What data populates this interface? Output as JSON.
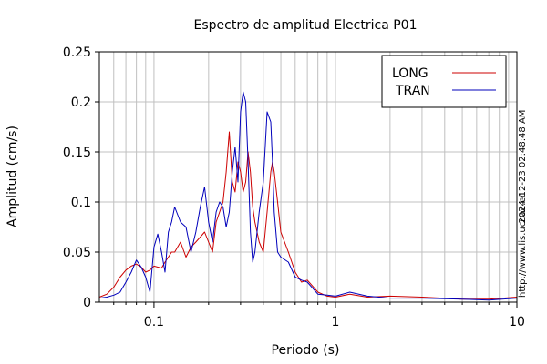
{
  "chart_data": {
    "type": "line",
    "title": "Espectro de amplitud Electrica P01",
    "xlabel": "Periodo (s)",
    "ylabel": "Amplitud (cm/s)",
    "x_scale": "log",
    "xlim": [
      0.05,
      10
    ],
    "ylim": [
      0,
      0.25
    ],
    "x_ticks": [
      0.1,
      1,
      10
    ],
    "x_tick_labels": [
      "0.1",
      "1",
      "10"
    ],
    "y_ticks": [
      0,
      0.05,
      0.1,
      0.15,
      0.2,
      0.25
    ],
    "y_tick_labels": [
      "0",
      "0.05",
      "0.1",
      "0.15",
      "0.2",
      "0.25"
    ],
    "grid": true,
    "legend_position": "top-right",
    "series": [
      {
        "name": "LONG",
        "color": "#cc0000",
        "x": [
          0.05,
          0.055,
          0.06,
          0.065,
          0.07,
          0.075,
          0.08,
          0.085,
          0.09,
          0.095,
          0.1,
          0.105,
          0.11,
          0.115,
          0.12,
          0.125,
          0.13,
          0.14,
          0.15,
          0.16,
          0.17,
          0.18,
          0.19,
          0.2,
          0.21,
          0.22,
          0.23,
          0.24,
          0.25,
          0.26,
          0.27,
          0.28,
          0.29,
          0.3,
          0.31,
          0.32,
          0.33,
          0.34,
          0.35,
          0.36,
          0.38,
          0.4,
          0.42,
          0.44,
          0.45,
          0.46,
          0.48,
          0.5,
          0.55,
          0.6,
          0.65,
          0.7,
          0.8,
          0.9,
          1.0,
          1.2,
          1.5,
          2.0,
          3.0,
          5.0,
          7.0,
          10.0
        ],
        "y": [
          0.005,
          0.008,
          0.015,
          0.025,
          0.032,
          0.036,
          0.038,
          0.035,
          0.03,
          0.032,
          0.036,
          0.035,
          0.034,
          0.04,
          0.045,
          0.05,
          0.05,
          0.06,
          0.045,
          0.055,
          0.06,
          0.065,
          0.07,
          0.06,
          0.05,
          0.08,
          0.09,
          0.1,
          0.13,
          0.17,
          0.12,
          0.11,
          0.14,
          0.13,
          0.11,
          0.12,
          0.15,
          0.13,
          0.095,
          0.08,
          0.06,
          0.05,
          0.09,
          0.13,
          0.14,
          0.13,
          0.1,
          0.07,
          0.05,
          0.03,
          0.02,
          0.022,
          0.01,
          0.006,
          0.005,
          0.008,
          0.005,
          0.006,
          0.005,
          0.003,
          0.003,
          0.005
        ]
      },
      {
        "name": "TRAN",
        "color": "#0000bb",
        "x": [
          0.05,
          0.055,
          0.06,
          0.065,
          0.07,
          0.075,
          0.08,
          0.085,
          0.09,
          0.095,
          0.1,
          0.105,
          0.11,
          0.115,
          0.12,
          0.125,
          0.13,
          0.14,
          0.15,
          0.16,
          0.17,
          0.18,
          0.19,
          0.2,
          0.21,
          0.22,
          0.23,
          0.24,
          0.25,
          0.26,
          0.27,
          0.28,
          0.29,
          0.3,
          0.31,
          0.32,
          0.33,
          0.34,
          0.35,
          0.36,
          0.38,
          0.4,
          0.42,
          0.44,
          0.45,
          0.46,
          0.48,
          0.5,
          0.55,
          0.6,
          0.65,
          0.7,
          0.8,
          0.9,
          1.0,
          1.2,
          1.5,
          2.0,
          3.0,
          5.0,
          7.0,
          10.0
        ],
        "y": [
          0.004,
          0.005,
          0.007,
          0.01,
          0.02,
          0.03,
          0.042,
          0.035,
          0.025,
          0.01,
          0.055,
          0.068,
          0.05,
          0.03,
          0.07,
          0.08,
          0.095,
          0.08,
          0.075,
          0.05,
          0.07,
          0.095,
          0.115,
          0.08,
          0.06,
          0.09,
          0.1,
          0.095,
          0.075,
          0.09,
          0.13,
          0.155,
          0.12,
          0.19,
          0.21,
          0.2,
          0.14,
          0.07,
          0.04,
          0.05,
          0.09,
          0.12,
          0.19,
          0.18,
          0.14,
          0.09,
          0.05,
          0.045,
          0.04,
          0.025,
          0.022,
          0.02,
          0.008,
          0.007,
          0.006,
          0.01,
          0.006,
          0.004,
          0.004,
          0.003,
          0.002,
          0.004
        ]
      }
    ]
  },
  "side_notes": {
    "timestamp": "2024-12-23 02:48:48 AM",
    "url": "http://www.lis.ucr.ac.cr"
  }
}
